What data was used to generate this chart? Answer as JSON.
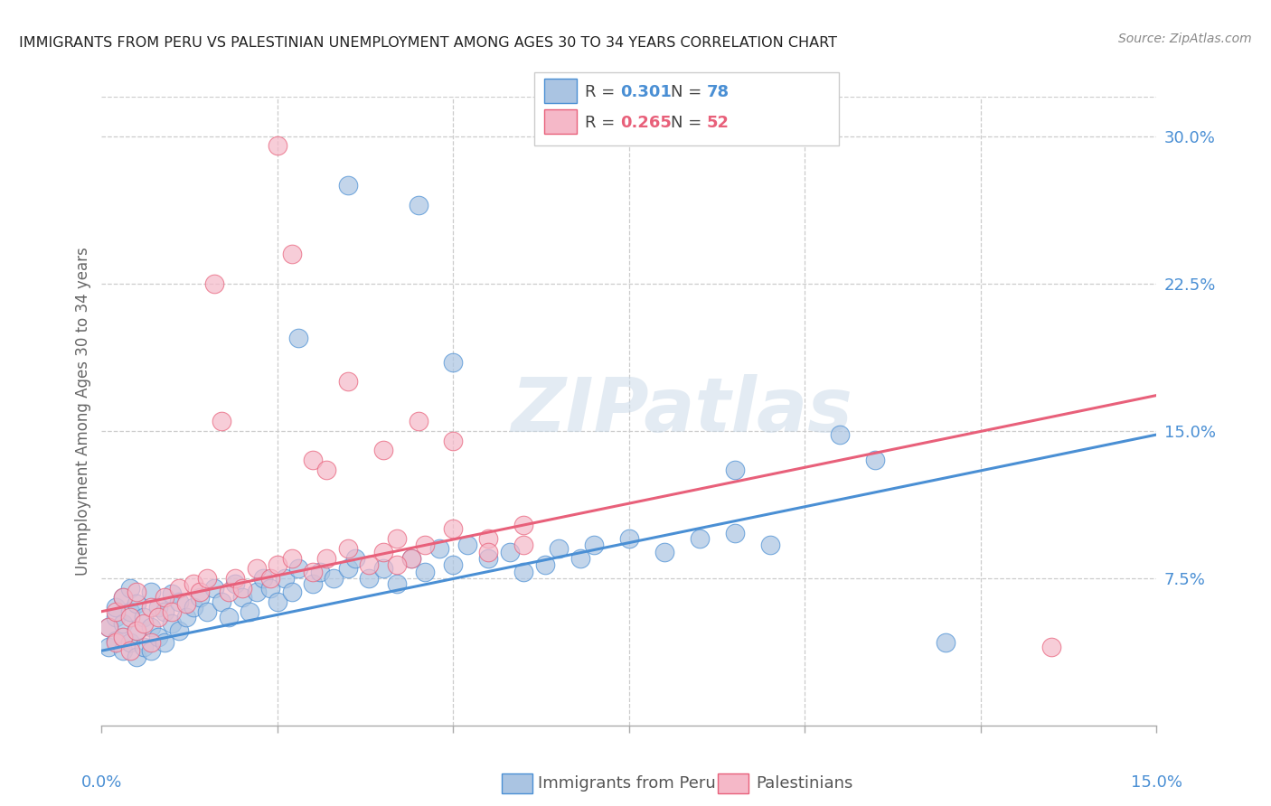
{
  "title": "IMMIGRANTS FROM PERU VS PALESTINIAN UNEMPLOYMENT AMONG AGES 30 TO 34 YEARS CORRELATION CHART",
  "source": "Source: ZipAtlas.com",
  "ylabel": "Unemployment Among Ages 30 to 34 years",
  "xlim": [
    0.0,
    0.15
  ],
  "ylim": [
    0.0,
    0.32
  ],
  "blue_color": "#aac4e2",
  "pink_color": "#f5b8c8",
  "blue_line_color": "#4a8fd4",
  "pink_line_color": "#e8607a",
  "blue_line_y0": 0.038,
  "blue_line_y1": 0.148,
  "pink_line_y0": 0.058,
  "pink_line_y1": 0.168,
  "watermark_text": "ZIPatlas",
  "blue_scatter_x": [
    0.001,
    0.001,
    0.002,
    0.002,
    0.002,
    0.003,
    0.003,
    0.003,
    0.003,
    0.004,
    0.004,
    0.004,
    0.005,
    0.005,
    0.005,
    0.006,
    0.006,
    0.007,
    0.007,
    0.007,
    0.008,
    0.008,
    0.009,
    0.009,
    0.01,
    0.01,
    0.011,
    0.011,
    0.012,
    0.013,
    0.014,
    0.015,
    0.016,
    0.017,
    0.018,
    0.019,
    0.02,
    0.021,
    0.022,
    0.023,
    0.024,
    0.025,
    0.026,
    0.027,
    0.028,
    0.03,
    0.031,
    0.033,
    0.035,
    0.036,
    0.038,
    0.04,
    0.042,
    0.044,
    0.046,
    0.048,
    0.05,
    0.052,
    0.055,
    0.058,
    0.06,
    0.063,
    0.065,
    0.068,
    0.07,
    0.075,
    0.08,
    0.085,
    0.09,
    0.095,
    0.028,
    0.035,
    0.045,
    0.05,
    0.09,
    0.105,
    0.11,
    0.12
  ],
  "blue_scatter_y": [
    0.04,
    0.05,
    0.043,
    0.055,
    0.06,
    0.038,
    0.045,
    0.052,
    0.065,
    0.042,
    0.058,
    0.07,
    0.035,
    0.048,
    0.062,
    0.04,
    0.055,
    0.038,
    0.05,
    0.068,
    0.045,
    0.06,
    0.042,
    0.058,
    0.052,
    0.067,
    0.048,
    0.063,
    0.055,
    0.06,
    0.065,
    0.058,
    0.07,
    0.063,
    0.055,
    0.072,
    0.065,
    0.058,
    0.068,
    0.075,
    0.07,
    0.063,
    0.075,
    0.068,
    0.08,
    0.072,
    0.078,
    0.075,
    0.08,
    0.085,
    0.075,
    0.08,
    0.072,
    0.085,
    0.078,
    0.09,
    0.082,
    0.092,
    0.085,
    0.088,
    0.078,
    0.082,
    0.09,
    0.085,
    0.092,
    0.095,
    0.088,
    0.095,
    0.098,
    0.092,
    0.197,
    0.275,
    0.265,
    0.185,
    0.13,
    0.148,
    0.135,
    0.042
  ],
  "pink_scatter_x": [
    0.001,
    0.002,
    0.002,
    0.003,
    0.003,
    0.004,
    0.004,
    0.005,
    0.005,
    0.006,
    0.007,
    0.007,
    0.008,
    0.009,
    0.01,
    0.011,
    0.012,
    0.013,
    0.014,
    0.015,
    0.016,
    0.017,
    0.018,
    0.019,
    0.02,
    0.022,
    0.024,
    0.025,
    0.027,
    0.03,
    0.032,
    0.035,
    0.038,
    0.04,
    0.042,
    0.044,
    0.046,
    0.05,
    0.055,
    0.06,
    0.025,
    0.027,
    0.03,
    0.032,
    0.035,
    0.04,
    0.045,
    0.05,
    0.055,
    0.06,
    0.135,
    0.042
  ],
  "pink_scatter_y": [
    0.05,
    0.042,
    0.058,
    0.045,
    0.065,
    0.038,
    0.055,
    0.048,
    0.068,
    0.052,
    0.042,
    0.06,
    0.055,
    0.065,
    0.058,
    0.07,
    0.062,
    0.072,
    0.068,
    0.075,
    0.225,
    0.155,
    0.068,
    0.075,
    0.07,
    0.08,
    0.075,
    0.082,
    0.085,
    0.078,
    0.085,
    0.09,
    0.082,
    0.088,
    0.095,
    0.085,
    0.092,
    0.1,
    0.095,
    0.102,
    0.295,
    0.24,
    0.135,
    0.13,
    0.175,
    0.14,
    0.155,
    0.145,
    0.088,
    0.092,
    0.04,
    0.082
  ]
}
